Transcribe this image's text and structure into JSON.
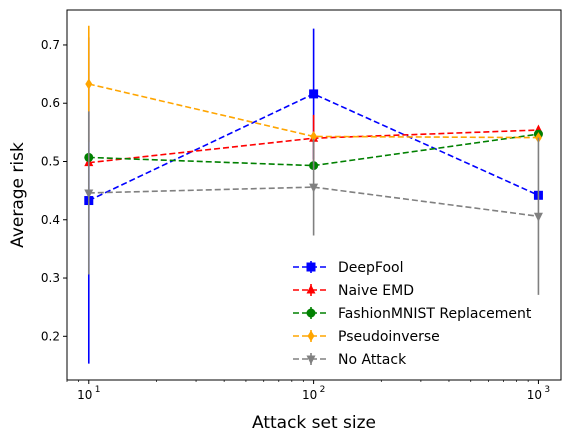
{
  "chart_data": {
    "type": "line",
    "xscale": "log",
    "x": [
      10,
      100,
      1000
    ],
    "x_tick_labels": [
      "10",
      "10",
      "10"
    ],
    "x_tick_exponents": [
      "1",
      "2",
      "3"
    ],
    "xlim": [
      8,
      1260
    ],
    "ylim": [
      0.125,
      0.76
    ],
    "y_ticks": [
      0.2,
      0.3,
      0.4,
      0.5,
      0.6,
      0.7
    ],
    "y_tick_labels": [
      "0.2",
      "0.3",
      "0.4",
      "0.5",
      "0.6",
      "0.7"
    ],
    "xlabel": "Attack set size",
    "ylabel": "Average risk",
    "legend_position": "lower-right",
    "grid": false,
    "series": [
      {
        "name": "DeepFool",
        "color": "#0000ff",
        "marker": "square",
        "values": [
          0.433,
          0.616,
          0.442
        ],
        "err": [
          0.28,
          0.112,
          0.0
        ]
      },
      {
        "name": "Naive EMD",
        "color": "#ff0000",
        "marker": "triangle-up",
        "values": [
          0.498,
          0.54,
          0.554
        ],
        "err": [
          0.0,
          0.04,
          0.0
        ]
      },
      {
        "name": "FashionMNIST Replacement",
        "color": "#008000",
        "marker": "circle",
        "values": [
          0.507,
          0.493,
          0.547
        ],
        "err": [
          0.0,
          0.0,
          0.0
        ]
      },
      {
        "name": "Pseudoinverse",
        "color": "#ffa500",
        "marker": "diamond",
        "values": [
          0.633,
          0.543,
          0.541
        ],
        "err": [
          0.1,
          0.0,
          0.0
        ]
      },
      {
        "name": "No Attack",
        "color": "#808080",
        "marker": "triangle-down",
        "values": [
          0.446,
          0.456,
          0.406
        ],
        "err": [
          0.14,
          0.083,
          0.135
        ]
      }
    ]
  }
}
